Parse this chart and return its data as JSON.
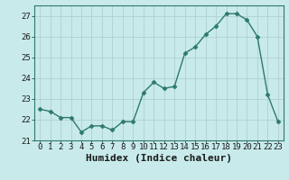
{
  "x": [
    0,
    1,
    2,
    3,
    4,
    5,
    6,
    7,
    8,
    9,
    10,
    11,
    12,
    13,
    14,
    15,
    16,
    17,
    18,
    19,
    20,
    21,
    22,
    23
  ],
  "y": [
    22.5,
    22.4,
    22.1,
    22.1,
    21.4,
    21.7,
    21.7,
    21.5,
    21.9,
    21.9,
    23.3,
    23.8,
    23.5,
    23.6,
    25.2,
    25.5,
    26.1,
    26.5,
    27.1,
    27.1,
    26.8,
    26.0,
    23.2,
    21.9
  ],
  "line_color": "#2d7a6a",
  "marker": "D",
  "markersize": 2.5,
  "linewidth": 1.0,
  "bg_color": "#c8eaea",
  "grid_color": "#b0d0d0",
  "xlabel": "Humidex (Indice chaleur)",
  "xlim": [
    -0.5,
    23.5
  ],
  "ylim": [
    21.0,
    27.5
  ],
  "yticks": [
    21,
    22,
    23,
    24,
    25,
    26,
    27
  ],
  "xticks": [
    0,
    1,
    2,
    3,
    4,
    5,
    6,
    7,
    8,
    9,
    10,
    11,
    12,
    13,
    14,
    15,
    16,
    17,
    18,
    19,
    20,
    21,
    22,
    23
  ],
  "tick_fontsize": 6.5,
  "xlabel_fontsize": 8,
  "tick_color": "#1a1a1a",
  "spine_color": "#2d7a6a"
}
